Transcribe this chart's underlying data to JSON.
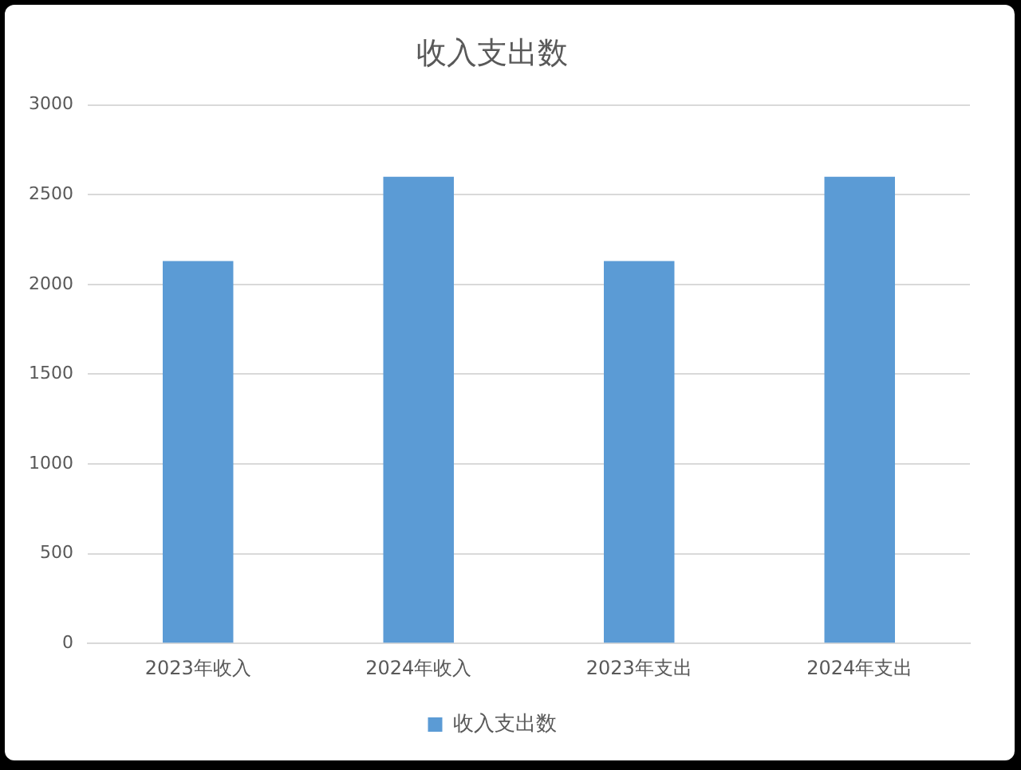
{
  "chart_data": {
    "type": "bar",
    "title": "收入支出数",
    "categories": [
      "2023年收入",
      "2024年收入",
      "2023年支出",
      "2024年支出"
    ],
    "series": [
      {
        "name": "收入支出数",
        "color": "#5b9bd5",
        "values": [
          2130,
          2600,
          2130,
          2600
        ]
      }
    ],
    "ylim": [
      0,
      3000
    ],
    "yticks": [
      0,
      500,
      1000,
      1500,
      2000,
      2500,
      3000
    ],
    "grid": "y",
    "legend": "bottom"
  }
}
